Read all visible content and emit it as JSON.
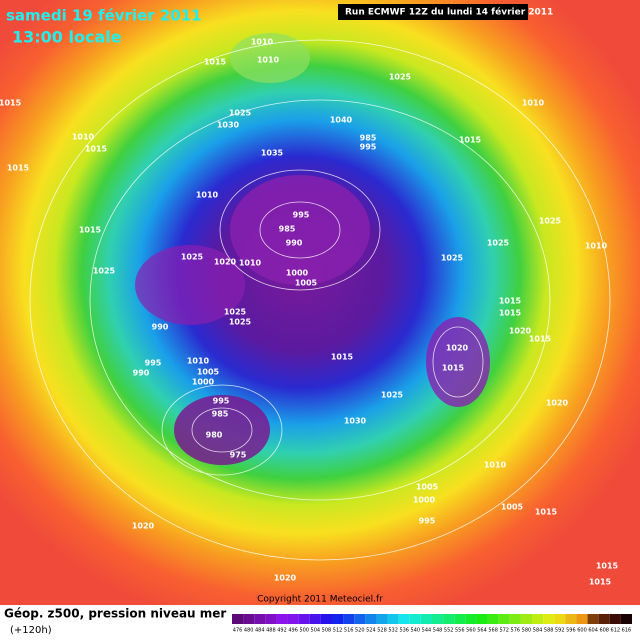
{
  "header": {
    "title": "samedi 19 février 2011",
    "subtitle": "13:00 locale",
    "run": "Run ECMWF 12Z du lundi 14 février 2011"
  },
  "footer": {
    "label": "Géop. z500, pression niveau mer",
    "lead": "(+120h)",
    "copyright": "Copyright 2011 Meteociel.fr"
  },
  "pressure_labels": [
    "1010",
    "1015",
    "1010",
    "1015",
    "1025",
    "1030",
    "1025",
    "1010",
    "1010",
    "1015",
    "1035",
    "1015",
    "1040",
    "985",
    "995",
    "1015",
    "1010",
    "995",
    "985",
    "990",
    "1015",
    "1025",
    "1010",
    "1025",
    "1025",
    "1020",
    "1010",
    "1025",
    "1025",
    "1000",
    "1005",
    "1015",
    "1015",
    "1025",
    "1025",
    "1020",
    "1015",
    "990",
    "1020",
    "1015",
    "995",
    "990",
    "1010",
    "1005",
    "1000",
    "1015",
    "1025",
    "1020",
    "995",
    "985",
    "1030",
    "980",
    "975",
    "1010",
    "1005",
    "1000",
    "995",
    "1005",
    "1015",
    "1020",
    "1015",
    "1020",
    "1015"
  ],
  "colorbar": {
    "ticks": [
      476,
      480,
      484,
      488,
      492,
      496,
      500,
      504,
      508,
      512,
      516,
      520,
      524,
      528,
      532,
      536,
      540,
      544,
      548,
      552,
      556,
      560,
      564,
      568,
      572,
      576,
      580,
      584,
      588,
      592,
      596,
      600,
      604,
      608,
      612,
      616
    ]
  }
}
